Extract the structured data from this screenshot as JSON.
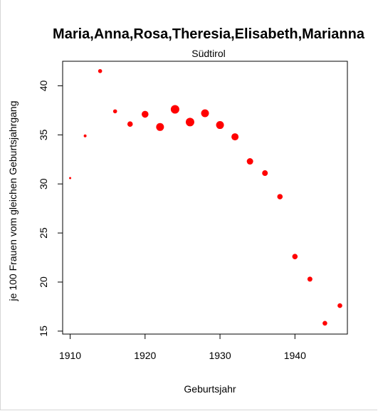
{
  "chart_data": {
    "type": "scatter",
    "title": "Maria,Anna,Rosa,Theresia,Elisabeth,Marianna",
    "subtitle": "Südtirol",
    "xlabel": "Geburtsjahr",
    "ylabel": "je 100 Frauen vom gleichen Geburtsjahrgang",
    "xlim": [
      1909,
      1947
    ],
    "ylim": [
      14.7,
      42.5
    ],
    "xticks": [
      1910,
      1920,
      1930,
      1940
    ],
    "yticks": [
      15,
      20,
      25,
      30,
      35,
      40
    ],
    "grid": false,
    "marker_color": "#ff0000",
    "x": [
      1910,
      1912,
      1914,
      1916,
      1918,
      1920,
      1922,
      1924,
      1926,
      1928,
      1930,
      1932,
      1934,
      1936,
      1938,
      1940,
      1942,
      1944,
      1946
    ],
    "y": [
      30.6,
      34.9,
      41.5,
      37.4,
      36.1,
      37.1,
      35.8,
      37.6,
      36.3,
      37.2,
      36.0,
      34.8,
      32.3,
      31.1,
      28.7,
      22.6,
      20.3,
      15.8,
      17.6
    ],
    "marker_size": [
      1.5,
      2.0,
      2.8,
      2.8,
      3.8,
      4.8,
      5.5,
      6.0,
      6.0,
      5.5,
      5.5,
      5.0,
      4.5,
      4.0,
      3.8,
      3.8,
      3.5,
      3.3,
      3.3
    ]
  }
}
